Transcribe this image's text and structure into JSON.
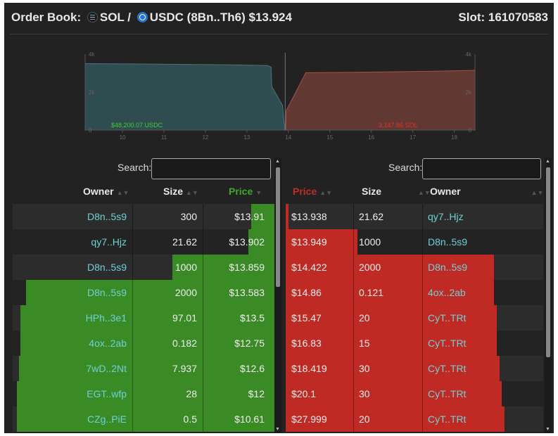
{
  "header": {
    "prefix": "Order Book:",
    "base_token": "SOL",
    "separator": "/",
    "quote_token": "USDC",
    "market_id": "(8Bn..Th6)",
    "price": "$13.924",
    "slot_label": "Slot: 161070583"
  },
  "icons": {
    "base": "sol-token-icon",
    "quote": "usdc-token-icon"
  },
  "colors": {
    "bid": "#3a8a25",
    "bid_bright": "#42a52c",
    "ask": "#bf2a24",
    "ask_bright": "#d93228",
    "bid_area": "#2f4c51",
    "ask_area": "#623832",
    "owner_text": "#6fd0d8",
    "background": "#222222"
  },
  "chart_data": {
    "type": "area",
    "x_ticks": [
      "10",
      "11",
      "12",
      "13",
      "14",
      "15",
      "16",
      "17",
      "18"
    ],
    "xlim": [
      9.1,
      18.5
    ],
    "y_ticks": [
      "0",
      "2k",
      "4k"
    ],
    "ylim": [
      0,
      4000
    ],
    "bid_label": "$48,200.07 USDC",
    "ask_label": "3,147.86 SOL",
    "mid_price": 13.924,
    "bids": [
      {
        "x": 9.1,
        "y": 3500
      },
      {
        "x": 10.5,
        "y": 3480
      },
      {
        "x": 11.5,
        "y": 3460
      },
      {
        "x": 12.5,
        "y": 3440
      },
      {
        "x": 13.0,
        "y": 3420
      },
      {
        "x": 13.5,
        "y": 3400
      },
      {
        "x": 13.583,
        "y": 3320
      },
      {
        "x": 13.6,
        "y": 2300
      },
      {
        "x": 13.859,
        "y": 1300
      },
      {
        "x": 13.902,
        "y": 300
      },
      {
        "x": 13.91,
        "y": 300
      }
    ],
    "asks": [
      {
        "x": 13.938,
        "y": 20
      },
      {
        "x": 13.949,
        "y": 1021
      },
      {
        "x": 14.422,
        "y": 3021
      },
      {
        "x": 15.5,
        "y": 3040
      },
      {
        "x": 16.5,
        "y": 3070
      },
      {
        "x": 17.5,
        "y": 3100
      },
      {
        "x": 18.5,
        "y": 3150
      }
    ]
  },
  "search": {
    "label": "Search:",
    "bid_value": "",
    "ask_value": ""
  },
  "bids": {
    "headers": {
      "owner": "Owner",
      "size": "Size",
      "price": "Price"
    },
    "rows": [
      {
        "owner": "D8n..5s9",
        "size": "300",
        "price": "$13.91",
        "depth": 0.09
      },
      {
        "owner": "qy7..Hjz",
        "size": "21.62",
        "price": "$13.902",
        "depth": 0.1
      },
      {
        "owner": "D8n..5s9",
        "size": "1000",
        "price": "$13.859",
        "depth": 0.39
      },
      {
        "owner": "D8n..5s9",
        "size": "2000",
        "price": "$13.583",
        "depth": 0.95
      },
      {
        "owner": "HPh..3e1",
        "size": "97.01",
        "price": "$13.5",
        "depth": 0.97
      },
      {
        "owner": "4ox..2ab",
        "size": "0.182",
        "price": "$12.75",
        "depth": 0.97
      },
      {
        "owner": "7wD..2Nt",
        "size": "7.937",
        "price": "$12.6",
        "depth": 0.975
      },
      {
        "owner": "EGT..wfp",
        "size": "28",
        "price": "$12",
        "depth": 0.985
      },
      {
        "owner": "CZg..PiE",
        "size": "0.5",
        "price": "$10.61",
        "depth": 0.985
      }
    ]
  },
  "asks": {
    "headers": {
      "price": "Price",
      "size": "Size",
      "owner": "Owner"
    },
    "rows": [
      {
        "price": "$13.938",
        "size": "21.62",
        "owner": "qy7..Hjz",
        "depth": 0.01
      },
      {
        "price": "$13.949",
        "size": "1000",
        "owner": "D8n..5s9",
        "depth": 0.28
      },
      {
        "price": "$14.422",
        "size": "2000",
        "owner": "D8n..5s9",
        "depth": 0.81
      },
      {
        "price": "$14.86",
        "size": "0.121",
        "owner": "4ox..2ab",
        "depth": 0.81
      },
      {
        "price": "$15.47",
        "size": "20",
        "owner": "CyT..TRt",
        "depth": 0.82
      },
      {
        "price": "$16.83",
        "size": "15",
        "owner": "CyT..TRt",
        "depth": 0.82
      },
      {
        "price": "$18.419",
        "size": "30",
        "owner": "CyT..TRt",
        "depth": 0.83
      },
      {
        "price": "$20.1",
        "size": "30",
        "owner": "CyT..TRt",
        "depth": 0.84
      },
      {
        "price": "$27.999",
        "size": "20",
        "owner": "CyT..TRt",
        "depth": 0.85
      }
    ]
  }
}
